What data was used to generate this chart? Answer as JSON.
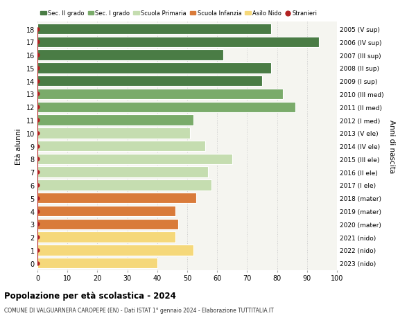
{
  "ages": [
    0,
    1,
    2,
    3,
    4,
    5,
    6,
    7,
    8,
    9,
    10,
    11,
    12,
    13,
    14,
    15,
    16,
    17,
    18
  ],
  "right_labels": [
    "2023 (nido)",
    "2022 (nido)",
    "2021 (nido)",
    "2020 (mater)",
    "2019 (mater)",
    "2018 (mater)",
    "2017 (I ele)",
    "2016 (II ele)",
    "2015 (III ele)",
    "2014 (IV ele)",
    "2013 (V ele)",
    "2012 (I med)",
    "2011 (II med)",
    "2010 (III med)",
    "2009 (I sup)",
    "2008 (II sup)",
    "2007 (III sup)",
    "2006 (IV sup)",
    "2005 (V sup)"
  ],
  "values": [
    40,
    52,
    46,
    47,
    46,
    53,
    58,
    57,
    65,
    56,
    51,
    52,
    86,
    82,
    75,
    78,
    62,
    94,
    78
  ],
  "bar_colors": [
    "#f5d87a",
    "#f5d87a",
    "#f5d87a",
    "#d97b3a",
    "#d97b3a",
    "#d97b3a",
    "#c5ddb0",
    "#c5ddb0",
    "#c5ddb0",
    "#c5ddb0",
    "#c5ddb0",
    "#7aab6a",
    "#7aab6a",
    "#7aab6a",
    "#4a7c45",
    "#4a7c45",
    "#4a7c45",
    "#4a7c45",
    "#4a7c45"
  ],
  "dot_color": "#b22222",
  "dot_x": [
    0,
    0,
    0,
    0,
    0,
    0,
    0,
    0,
    0,
    0,
    0,
    0,
    0,
    0,
    0,
    0,
    0,
    0,
    0
  ],
  "legend_labels": [
    "Sec. II grado",
    "Sec. I grado",
    "Scuola Primaria",
    "Scuola Infanzia",
    "Asilo Nido",
    "Stranieri"
  ],
  "legend_colors": [
    "#4a7c45",
    "#7aab6a",
    "#c5ddb0",
    "#d97b3a",
    "#f5d87a",
    "#b22222"
  ],
  "ylabel_left": "Età alunni",
  "ylabel_right": "Anni di nascita",
  "title": "Popolazione per età scolastica - 2024",
  "subtitle": "COMUNE DI VALGUARNERA CAROPEPE (EN) - Dati ISTAT 1° gennaio 2024 - Elaborazione TUTTITALIA.IT",
  "xlim": [
    0,
    100
  ],
  "bg_color": "#ffffff",
  "plot_bg": "#f5f5f0",
  "grid_color": "#cccccc",
  "bar_height": 0.82
}
